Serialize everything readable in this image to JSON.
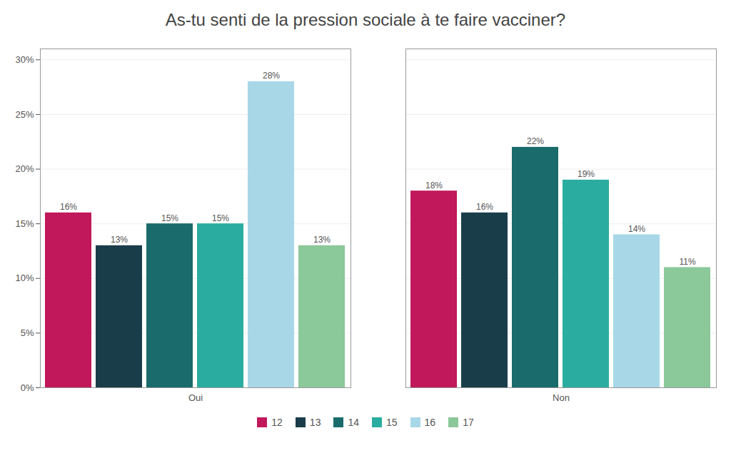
{
  "chart_data": {
    "type": "bar",
    "title": "As-tu senti de la pression sociale à te faire vacciner?",
    "categories": [
      "Oui",
      "Non"
    ],
    "series": [
      {
        "name": "12",
        "color": "#C0185A",
        "values": [
          16,
          18
        ],
        "value_labels": [
          "16%",
          "18%"
        ]
      },
      {
        "name": "13",
        "color": "#1A3D4A",
        "values": [
          13,
          16
        ],
        "value_labels": [
          "13%",
          "16%"
        ]
      },
      {
        "name": "14",
        "color": "#1A6B6B",
        "values": [
          15,
          22
        ],
        "value_labels": [
          "15%",
          "22%"
        ]
      },
      {
        "name": "15",
        "color": "#2AADA0",
        "values": [
          15,
          19
        ],
        "value_labels": [
          "15%",
          "19%"
        ]
      },
      {
        "name": "16",
        "color": "#A8D8E8",
        "values": [
          28,
          14
        ],
        "value_labels": [
          "28%",
          "14%"
        ]
      },
      {
        "name": "17",
        "color": "#8BC89A",
        "values": [
          13,
          11
        ],
        "value_labels": [
          "13%",
          "11%"
        ]
      }
    ],
    "ylim": [
      0,
      31
    ],
    "yticks": [
      {
        "value": 0,
        "label": "0%"
      },
      {
        "value": 5,
        "label": "5%"
      },
      {
        "value": 10,
        "label": "10%"
      },
      {
        "value": 15,
        "label": "15%"
      },
      {
        "value": 20,
        "label": "20%"
      },
      {
        "value": 25,
        "label": "25%"
      },
      {
        "value": 30,
        "label": "30%"
      }
    ],
    "grid": true,
    "legend": "bottom",
    "data_labels": true
  }
}
